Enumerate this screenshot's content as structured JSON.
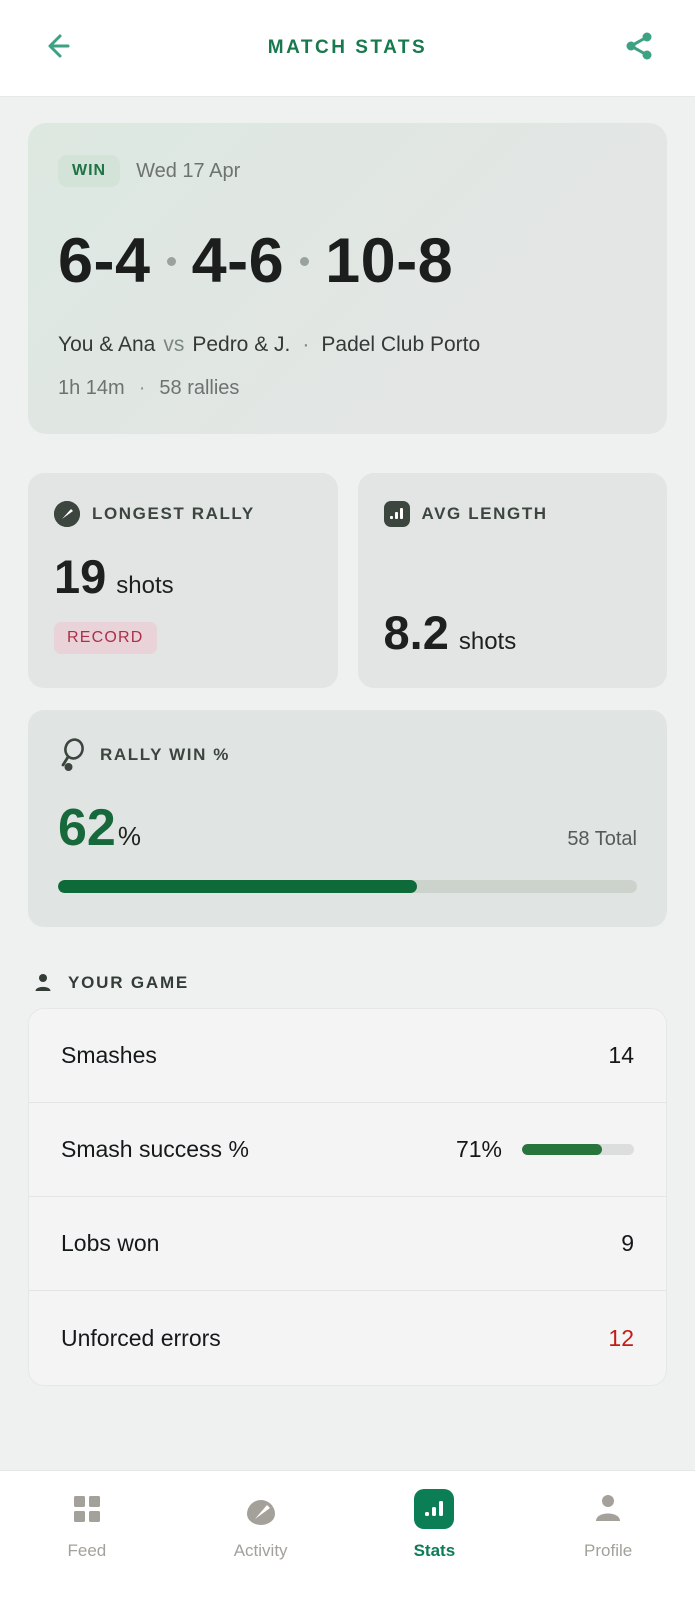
{
  "header": {
    "title": "MATCH STATS",
    "back_icon": "back-arrow-icon",
    "share_icon": "share-icon",
    "accent_color": "#3da183",
    "title_color": "#19794e"
  },
  "match": {
    "result_badge": "WIN",
    "date": "Wed 17 Apr",
    "sets": [
      "6-4",
      "4-6",
      "10-8"
    ],
    "team_you": "You & Ana",
    "vs_label": "vs",
    "team_opponents": "Pedro & J.",
    "venue": "Padel Club Porto",
    "duration": "1h 14m",
    "rallies": "58 rallies"
  },
  "stat_cards": {
    "longest_rally": {
      "icon": "gauge-icon",
      "title": "LONGEST RALLY",
      "value": "19",
      "unit": "shots",
      "badge": "RECORD",
      "badge_color": "#ab3048"
    },
    "avg_length": {
      "icon": "bar-chart-icon",
      "title": "AVG LENGTH",
      "value": "8.2",
      "unit": "shots"
    }
  },
  "rally_win": {
    "icon": "racket-icon",
    "title": "RALLY WIN %",
    "value": "62",
    "unit": "%",
    "pct": 62,
    "total_label": "58 Total",
    "fill_color": "#0e6b39",
    "value_color": "#17693c"
  },
  "your_game": {
    "icon": "person-icon",
    "title": "YOUR GAME",
    "rows": [
      {
        "label": "Smashes",
        "value": "14"
      },
      {
        "label": "Smash success %",
        "value": "71%",
        "bar_pct": 71
      },
      {
        "label": "Lobs won",
        "value": "9"
      },
      {
        "label": "Unforced errors",
        "value": "12",
        "negative": true,
        "value_color": "#c21c18"
      }
    ]
  },
  "nav": {
    "active_color": "#0c7e55",
    "inactive_color": "#a4a19b",
    "items": [
      {
        "label": "Feed",
        "icon": "grid-icon",
        "active": false
      },
      {
        "label": "Activity",
        "icon": "gauge-icon",
        "active": false
      },
      {
        "label": "Stats",
        "icon": "bar-chart-icon",
        "active": true
      },
      {
        "label": "Profile",
        "icon": "person-icon",
        "active": false
      }
    ]
  }
}
